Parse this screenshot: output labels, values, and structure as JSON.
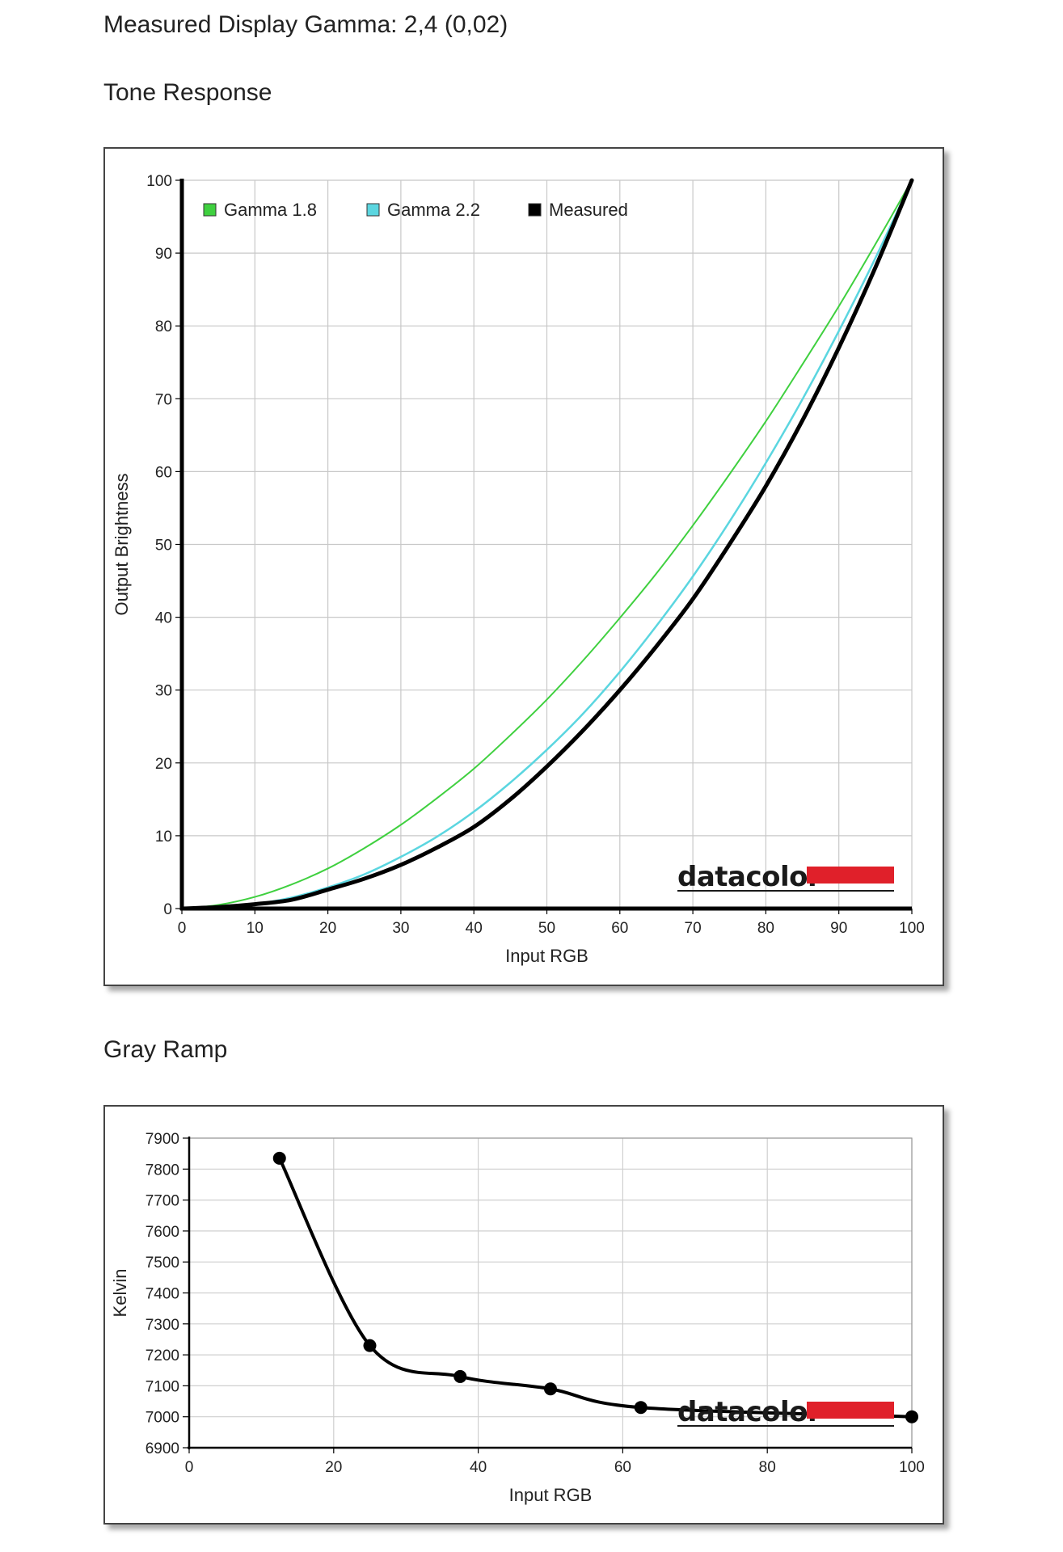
{
  "header": {
    "gamma_line": "Measured Display Gamma: 2,4 (0,02)",
    "tone_title": "Tone Response",
    "gray_title": "Gray Ramp"
  },
  "logo_text": "datacolor",
  "chart_data": [
    {
      "type": "line",
      "xlabel": "Input RGB",
      "ylabel": "Output Brightness",
      "xlim": [
        0,
        100
      ],
      "ylim": [
        0,
        100
      ],
      "xticks": [
        0,
        10,
        20,
        30,
        40,
        50,
        60,
        70,
        80,
        90,
        100
      ],
      "yticks": [
        0,
        10,
        20,
        30,
        40,
        50,
        60,
        70,
        80,
        90,
        100
      ],
      "grid": true,
      "legend_position": "top-left",
      "series": [
        {
          "name": "Gamma 1.8",
          "color": "#3fd03f",
          "x": [
            0,
            5,
            10,
            15,
            20,
            25,
            30,
            35,
            40,
            45,
            50,
            55,
            60,
            65,
            70,
            75,
            80,
            85,
            90,
            95,
            100
          ],
          "y": [
            0,
            0.5,
            1.6,
            3.3,
            5.5,
            8.3,
            11.5,
            15.2,
            19.2,
            23.8,
            28.7,
            34.1,
            39.9,
            46.0,
            52.6,
            59.6,
            66.9,
            74.7,
            82.7,
            91.2,
            100
          ]
        },
        {
          "name": "Gamma 2.2",
          "color": "#5bd6e0",
          "x": [
            0,
            5,
            10,
            15,
            20,
            25,
            30,
            35,
            40,
            45,
            50,
            55,
            60,
            65,
            70,
            75,
            80,
            85,
            90,
            95,
            100
          ],
          "y": [
            0,
            0.1,
            0.6,
            1.5,
            2.9,
            4.7,
            7.1,
            9.9,
            13.3,
            17.3,
            21.8,
            26.8,
            32.5,
            38.8,
            45.6,
            53.1,
            61.2,
            69.9,
            79.3,
            89.3,
            100
          ]
        },
        {
          "name": "Measured",
          "color": "#000000",
          "x": [
            0,
            5,
            10,
            15,
            20,
            25,
            30,
            35,
            40,
            45,
            50,
            55,
            60,
            65,
            70,
            75,
            80,
            85,
            90,
            95,
            100
          ],
          "y": [
            0,
            0.2,
            0.6,
            1.2,
            2.6,
            4.1,
            6.0,
            8.4,
            11.2,
            15.0,
            19.5,
            24.5,
            30.0,
            36.0,
            42.5,
            50.0,
            58.0,
            67.0,
            77.0,
            88.0,
            100
          ]
        }
      ]
    },
    {
      "type": "line",
      "xlabel": "Input RGB",
      "ylabel": "Kelvin",
      "xlim": [
        0,
        100
      ],
      "ylim": [
        6900,
        7900
      ],
      "xticks": [
        0,
        20,
        40,
        60,
        80,
        100
      ],
      "yticks": [
        6900,
        7000,
        7100,
        7200,
        7300,
        7400,
        7500,
        7600,
        7700,
        7800,
        7900
      ],
      "grid": true,
      "series": [
        {
          "color": "#000000",
          "x": [
            12.5,
            25,
            37.5,
            50,
            62.5,
            100
          ],
          "y": [
            7835,
            7230,
            7130,
            7090,
            7030,
            7000
          ]
        }
      ]
    }
  ]
}
